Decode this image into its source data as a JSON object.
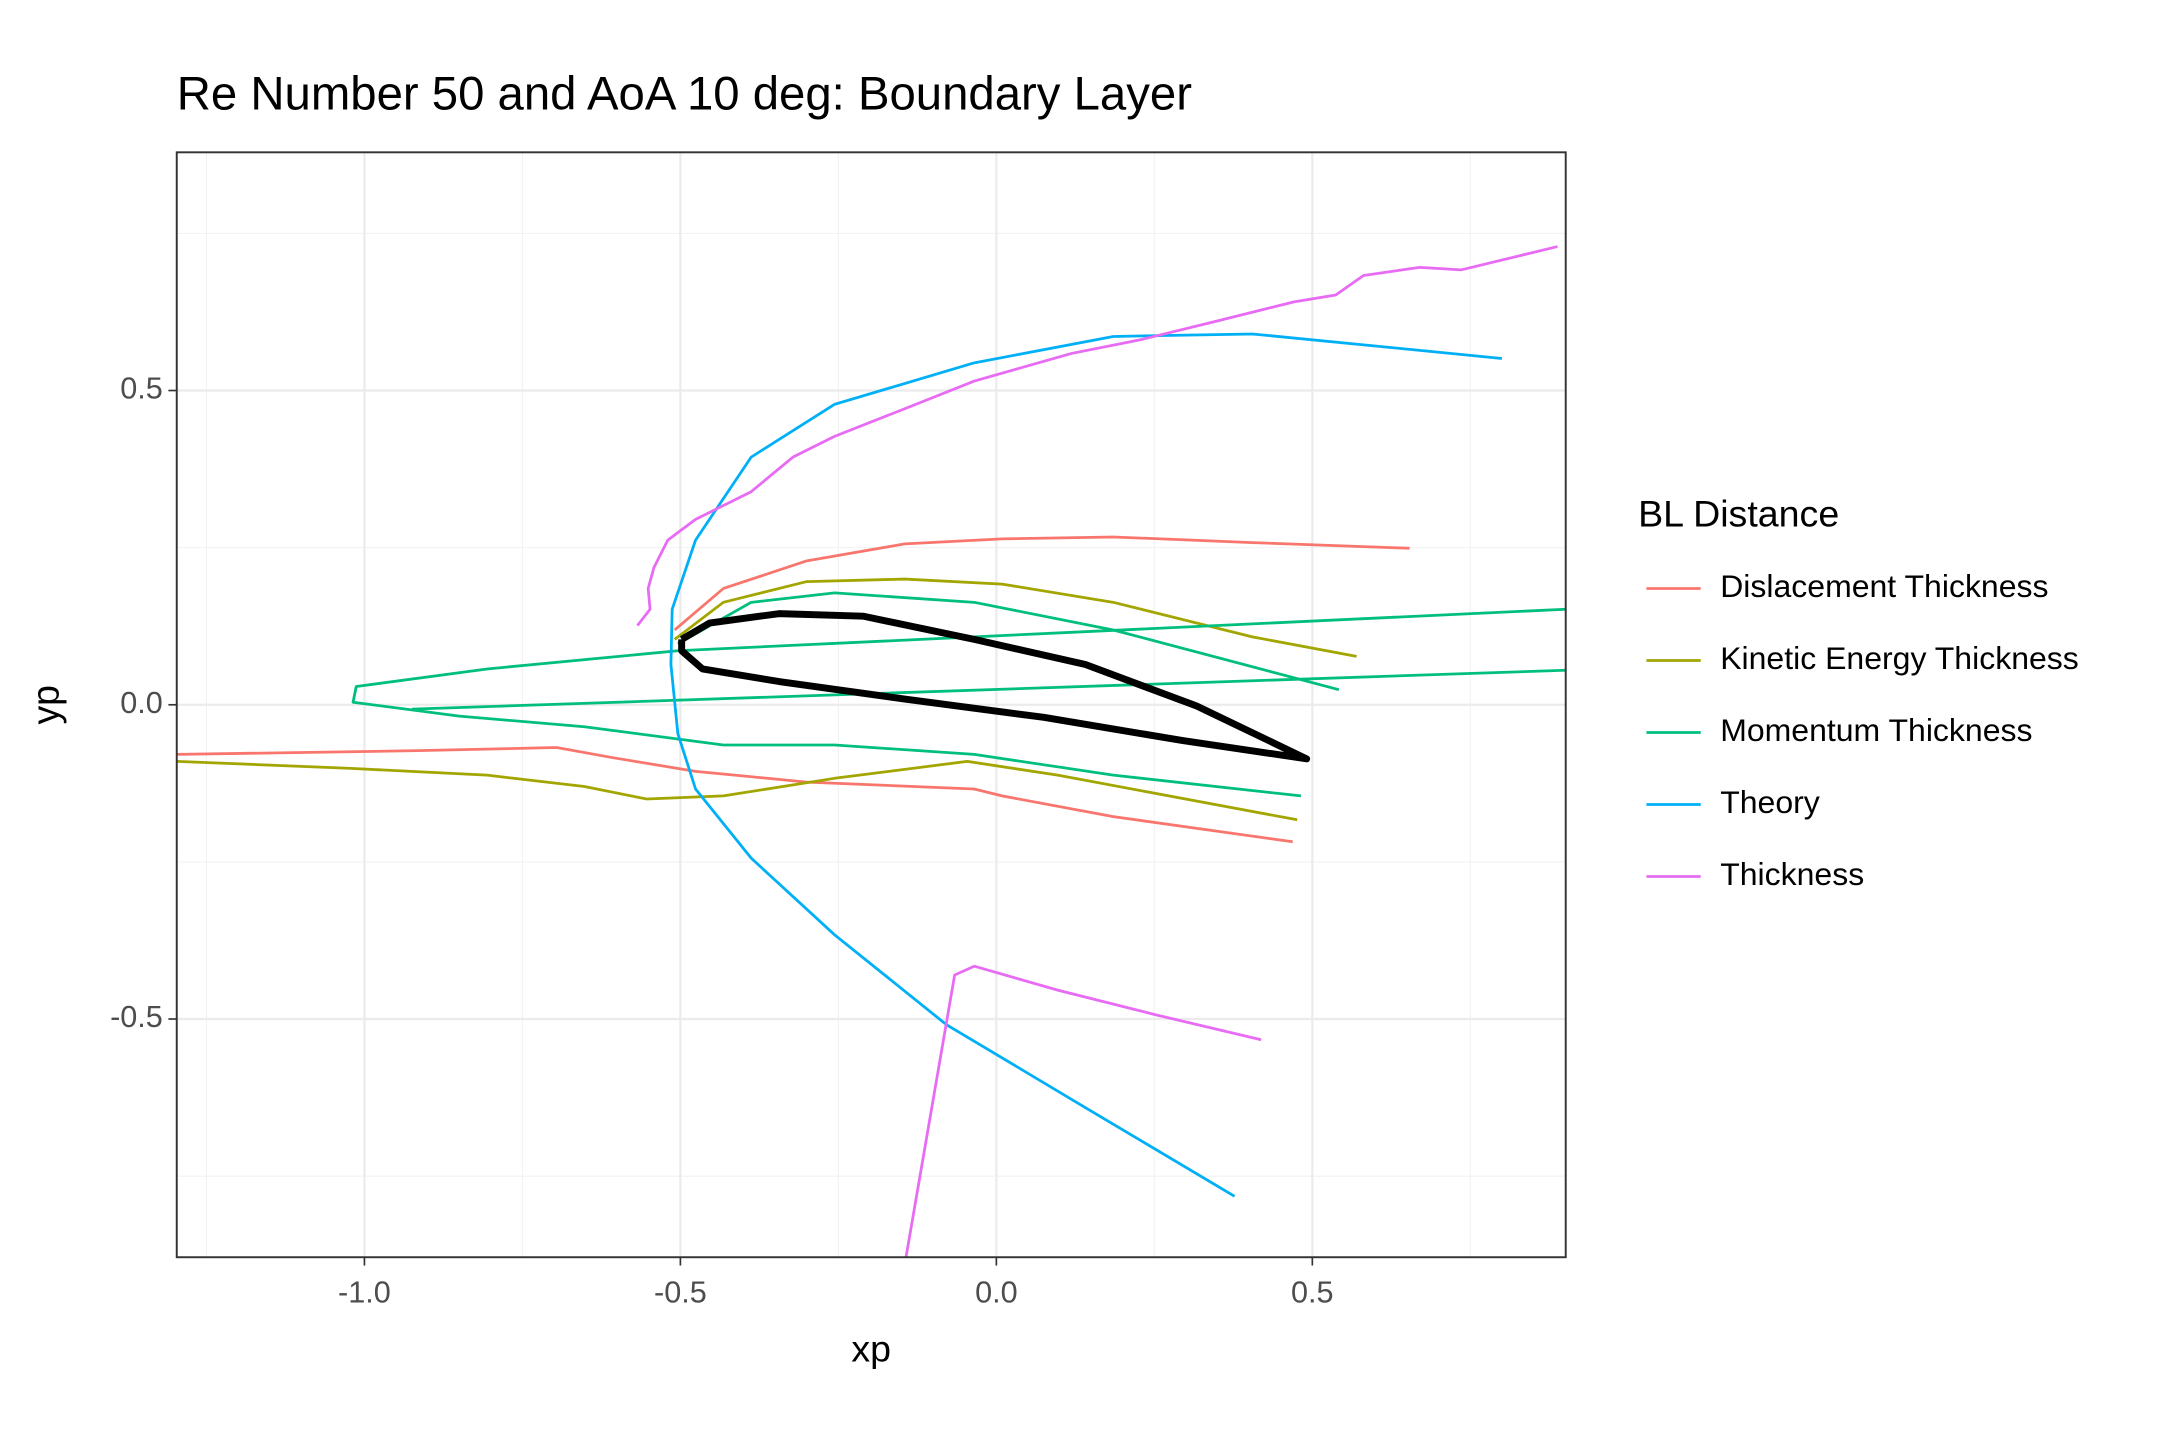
{
  "chart_data": {
    "type": "line",
    "title": "Re Number 50 and AoA 10 deg: Boundary Layer",
    "x_label": "xp",
    "y_label": "yp",
    "legend_title": "BL Distance",
    "legend": "right",
    "grid": true,
    "xlim": [
      -1.297,
      0.901
    ],
    "ylim": [
      -0.879,
      0.879
    ],
    "xticks": [
      {
        "value": -1,
        "label": "-1.0"
      },
      {
        "value": -0.5,
        "label": "-0.5"
      },
      {
        "value": 0,
        "label": "0.0"
      },
      {
        "value": 0.5,
        "label": "0.5"
      }
    ],
    "yticks": [
      {
        "value": -0.5,
        "label": "-0.5"
      },
      {
        "value": 0,
        "label": "0.0"
      },
      {
        "value": 0.5,
        "label": "0.5"
      }
    ],
    "xminor": [
      -1.25,
      -0.75,
      -0.25,
      0.25,
      0.75
    ],
    "yminor": [
      -0.75,
      -0.25,
      0.25,
      0.75
    ],
    "series": [
      {
        "name": "Dislacement Thickness",
        "color": "#F8766D",
        "x": [
          -0.509,
          -0.432,
          -0.3,
          -0.145,
          0.009,
          0.185,
          0.405,
          0.654,
          null,
          -1.297,
          -0.916,
          -0.696,
          -0.608,
          -0.476,
          -0.3,
          -0.035,
          0.009,
          0.185,
          0.469
        ],
        "y": [
          0.119,
          0.185,
          0.229,
          0.256,
          0.264,
          0.267,
          0.258,
          0.249,
          null,
          -0.079,
          -0.073,
          -0.068,
          -0.084,
          -0.106,
          -0.123,
          -0.134,
          -0.145,
          -0.178,
          -0.218
        ]
      },
      {
        "name": "Kinetic Energy Thickness",
        "color": "#A3A500",
        "x": [
          -0.509,
          -0.432,
          -0.3,
          -0.145,
          0.009,
          0.185,
          0.405,
          0.57,
          null,
          -1.297,
          -1.026,
          -0.806,
          -0.652,
          -0.553,
          -0.432,
          -0.256,
          -0.046,
          0.097,
          0.476
        ],
        "y": [
          0.104,
          0.163,
          0.196,
          0.2,
          0.192,
          0.163,
          0.108,
          0.077,
          null,
          -0.09,
          -0.101,
          -0.112,
          -0.13,
          -0.15,
          -0.145,
          -0.117,
          -0.09,
          -0.112,
          -0.183
        ]
      },
      {
        "name": "Momentum Thickness",
        "color": "#00BF7D",
        "x": [
          -0.504,
          -0.388,
          -0.256,
          -0.035,
          0.185,
          0.542,
          null,
          0.901,
          -0.504,
          -0.806,
          -1.013,
          -1.018,
          -0.85,
          -0.652,
          -0.432,
          -0.256,
          -0.035,
          0.185,
          0.482,
          null,
          -0.925,
          0.901
        ],
        "y": [
          0.097,
          0.163,
          0.178,
          0.163,
          0.119,
          0.024,
          null,
          0.152,
          0.086,
          0.057,
          0.029,
          0.004,
          -0.018,
          -0.035,
          -0.064,
          -0.064,
          -0.079,
          -0.112,
          -0.145,
          null,
          -0.007,
          0.055
        ]
      },
      {
        "name": "Theory",
        "color": "#00B0F6",
        "x": [
          0.8,
          0.405,
          0.185,
          -0.035,
          -0.256,
          -0.388,
          -0.476,
          -0.513,
          -0.515,
          -0.504,
          -0.476,
          -0.388,
          -0.256,
          -0.079,
          0.141,
          0.377
        ],
        "y": [
          0.551,
          0.59,
          0.586,
          0.544,
          0.478,
          0.394,
          0.262,
          0.152,
          0.064,
          -0.046,
          -0.134,
          -0.244,
          -0.366,
          -0.509,
          -0.641,
          -0.782
        ]
      },
      {
        "name": "Thickness",
        "color": "#E76BF3",
        "x": [
          -0.568,
          -0.548,
          -0.551,
          -0.542,
          -0.52,
          -0.476,
          -0.388,
          -0.322,
          -0.256,
          -0.145,
          -0.035,
          0.119,
          0.229,
          0.339,
          0.471,
          0.537,
          0.581,
          0.67,
          0.736,
          0.888,
          null,
          -0.143,
          -0.066,
          -0.035,
          0.097,
          0.251,
          0.419
        ],
        "y": [
          0.126,
          0.152,
          0.185,
          0.218,
          0.262,
          0.295,
          0.339,
          0.394,
          0.427,
          0.471,
          0.515,
          0.559,
          0.581,
          0.608,
          0.641,
          0.652,
          0.683,
          0.696,
          0.692,
          0.729,
          null,
          -0.879,
          -0.43,
          -0.416,
          -0.454,
          -0.493,
          -0.533
        ]
      }
    ],
    "outline": {
      "color": "#000000",
      "x": [
        -0.498,
        -0.454,
        -0.344,
        -0.211,
        -0.035,
        0.141,
        0.317,
        0.491,
        0.295,
        0.075,
        -0.145,
        -0.344,
        -0.465,
        -0.498,
        -0.498
      ],
      "y": [
        0.104,
        0.13,
        0.145,
        0.141,
        0.104,
        0.064,
        -0.002,
        -0.086,
        -0.057,
        -0.02,
        0.009,
        0.037,
        0.057,
        0.086,
        0.104
      ]
    }
  }
}
